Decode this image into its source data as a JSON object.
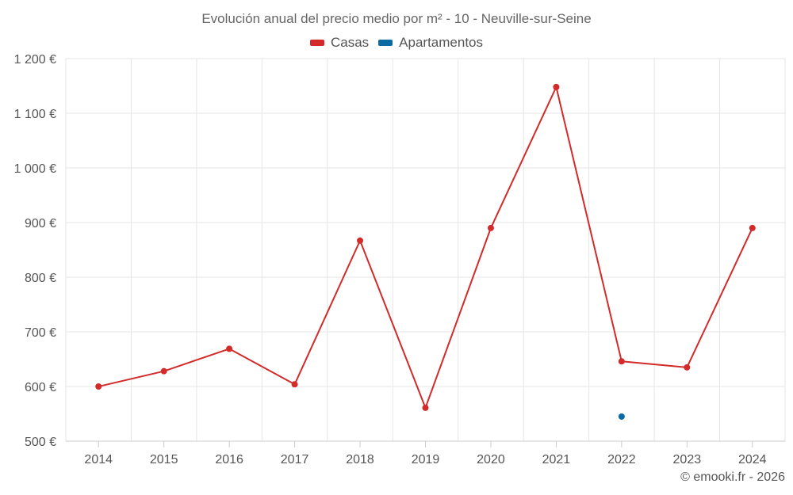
{
  "chart_data": {
    "type": "line",
    "title": "Evolución anual del precio medio por m² - 10 - Neuville-sur-Seine",
    "xlabel": "",
    "ylabel": "",
    "categories": [
      "2014",
      "2015",
      "2016",
      "2017",
      "2018",
      "2019",
      "2020",
      "2021",
      "2022",
      "2023",
      "2024"
    ],
    "ylim": [
      500,
      1200
    ],
    "yticks": [
      500,
      600,
      700,
      800,
      900,
      1000,
      1100,
      1200
    ],
    "ytick_labels": [
      "500 €",
      "600 €",
      "700 €",
      "800 €",
      "900 €",
      "1 000 €",
      "1 100 €",
      "1 200 €"
    ],
    "grid": true,
    "legend_position": "top-center",
    "series": [
      {
        "name": "Casas",
        "color": "#d32a2a",
        "values": [
          600,
          628,
          669,
          604,
          867,
          561,
          890,
          1148,
          646,
          635,
          890
        ]
      },
      {
        "name": "Apartamentos",
        "color": "#0b6aa2",
        "values": [
          null,
          null,
          null,
          null,
          null,
          null,
          null,
          null,
          545,
          null,
          null
        ]
      }
    ]
  },
  "credit": "© emooki.fr - 2026"
}
